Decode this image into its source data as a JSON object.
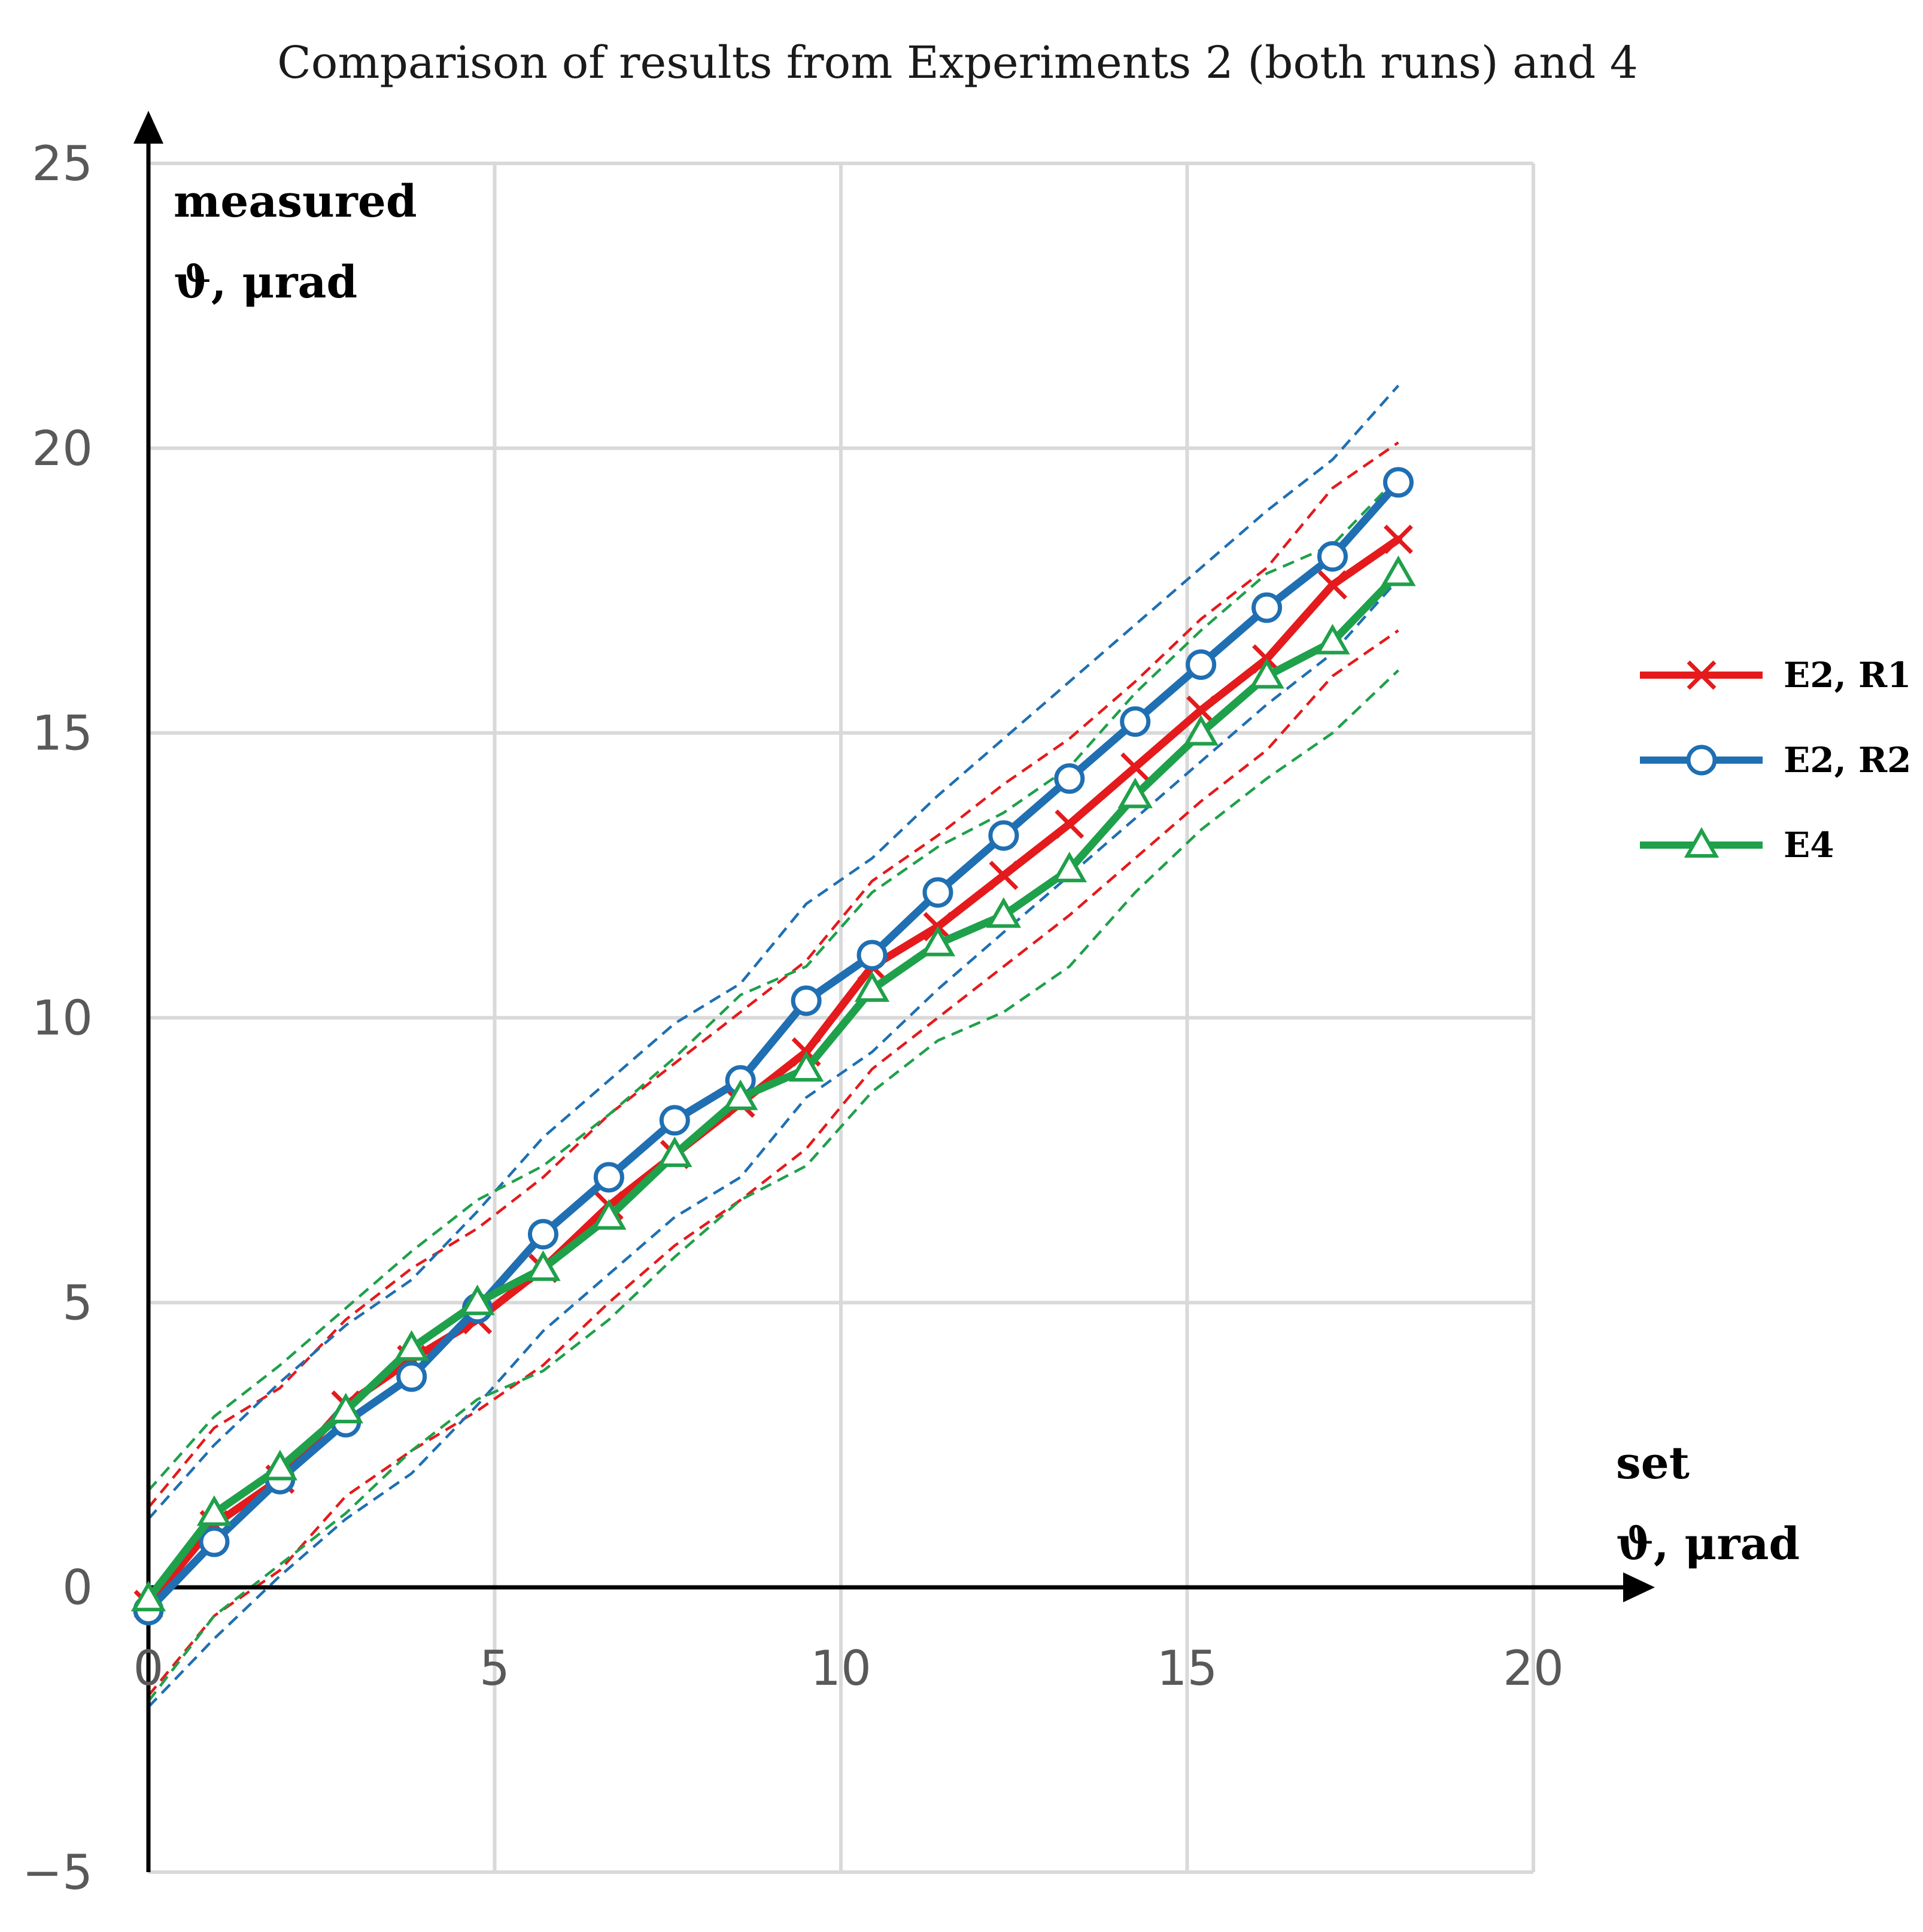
{
  "chart_data": {
    "type": "line",
    "title": "Comparison of results from Experiments 2 (both runs) and 4",
    "xlabel": [
      "set",
      "ϑ, μrad"
    ],
    "ylabel": [
      "measured",
      "ϑ, μrad"
    ],
    "xlim": [
      0,
      20
    ],
    "ylim": [
      -5,
      25
    ],
    "xticks": [
      "0",
      "5",
      "10",
      "15",
      "20"
    ],
    "yticks": [
      "−5",
      "0",
      "5",
      "10",
      "15",
      "20",
      "25"
    ],
    "grid": true,
    "legend_position": "right",
    "x": [
      0,
      0.95,
      1.9,
      2.85,
      3.8,
      4.75,
      5.7,
      6.65,
      7.6,
      8.55,
      9.5,
      10.45,
      11.4,
      12.35,
      13.3,
      14.25,
      15.2,
      16.15,
      17.1,
      18.05
    ],
    "series": [
      {
        "name": "E2, R1",
        "color": "#e41a1c",
        "marker": "x",
        "values": [
          -0.3,
          1.1,
          1.9,
          3.2,
          4.0,
          4.7,
          5.6,
          6.7,
          7.6,
          8.5,
          9.4,
          10.9,
          11.6,
          12.5,
          13.4,
          14.4,
          15.4,
          16.3,
          17.6,
          18.4
        ],
        "upper": [
          1.4,
          2.8,
          3.5,
          4.7,
          5.6,
          6.3,
          7.2,
          8.3,
          9.2,
          10.1,
          11.0,
          12.4,
          13.2,
          14.1,
          14.9,
          15.9,
          17.0,
          17.9,
          19.3,
          20.1
        ],
        "lower": [
          -1.9,
          -0.5,
          0.3,
          1.6,
          2.4,
          3.1,
          3.9,
          5.0,
          6.0,
          6.8,
          7.7,
          9.1,
          10.0,
          10.9,
          11.8,
          12.8,
          13.8,
          14.7,
          16.0,
          16.8
        ]
      },
      {
        "name": "E2, R2",
        "color": "#1f6fb2",
        "marker": "o",
        "values": [
          -0.4,
          0.8,
          1.9,
          2.9,
          3.7,
          4.9,
          6.2,
          7.2,
          8.2,
          8.9,
          10.3,
          11.1,
          12.2,
          13.2,
          14.2,
          15.2,
          16.2,
          17.2,
          18.1,
          19.4
        ],
        "upper": [
          1.2,
          2.5,
          3.6,
          4.6,
          5.4,
          6.6,
          7.9,
          8.9,
          9.9,
          10.6,
          12.0,
          12.8,
          13.9,
          14.9,
          15.9,
          16.9,
          17.9,
          18.9,
          19.8,
          21.1
        ],
        "lower": [
          -2.1,
          -0.9,
          0.2,
          1.2,
          2.0,
          3.2,
          4.5,
          5.5,
          6.5,
          7.2,
          8.6,
          9.4,
          10.5,
          11.5,
          12.5,
          13.5,
          14.5,
          15.5,
          16.4,
          17.7
        ]
      },
      {
        "name": "E4",
        "color": "#1fa04a",
        "marker": "^",
        "values": [
          -0.2,
          1.3,
          2.1,
          3.1,
          4.2,
          5.0,
          5.6,
          6.5,
          7.6,
          8.6,
          9.1,
          10.5,
          11.3,
          11.8,
          12.6,
          13.9,
          15.0,
          16.0,
          16.6,
          17.8
        ],
        "upper": [
          1.7,
          3.0,
          3.9,
          4.9,
          5.9,
          6.8,
          7.4,
          8.3,
          9.3,
          10.4,
          10.9,
          12.2,
          13.0,
          13.6,
          14.4,
          15.7,
          16.8,
          17.8,
          18.3,
          19.5
        ],
        "lower": [
          -2.0,
          -0.5,
          0.4,
          1.3,
          2.4,
          3.3,
          3.8,
          4.7,
          5.8,
          6.8,
          7.4,
          8.7,
          9.6,
          10.1,
          10.9,
          12.2,
          13.3,
          14.2,
          15.0,
          16.1
        ]
      }
    ]
  }
}
